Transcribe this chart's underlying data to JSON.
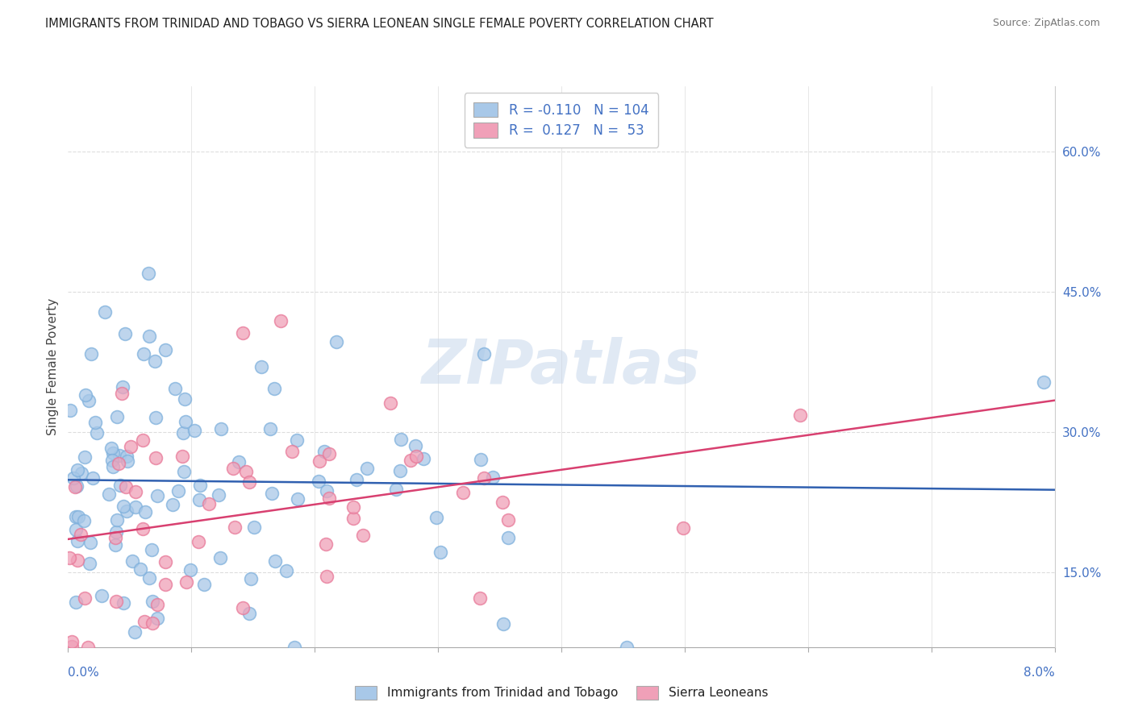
{
  "title": "IMMIGRANTS FROM TRINIDAD AND TOBAGO VS SIERRA LEONEAN SINGLE FEMALE POVERTY CORRELATION CHART",
  "source": "Source: ZipAtlas.com",
  "ylabel": "Single Female Poverty",
  "y_ticks": [
    0.15,
    0.3,
    0.45,
    0.6
  ],
  "y_tick_labels": [
    "15.0%",
    "30.0%",
    "45.0%",
    "60.0%"
  ],
  "x_range": [
    0.0,
    8.0
  ],
  "y_range": [
    0.07,
    0.67
  ],
  "blue_R": -0.11,
  "blue_N": 104,
  "pink_R": 0.127,
  "pink_N": 53,
  "blue_color": "#A8C8E8",
  "pink_color": "#F0A0B8",
  "blue_edge_color": "#7EB0DC",
  "pink_edge_color": "#E87898",
  "blue_line_color": "#3060B0",
  "pink_line_color": "#D84070",
  "legend_label_blue": "Immigrants from Trinidad and Tobago",
  "legend_label_pink": "Sierra Leoneans",
  "watermark": "ZIPatlas",
  "background_color": "#FFFFFF",
  "grid_color": "#DDDDDD",
  "title_color": "#222222",
  "axis_label_color": "#4472C4"
}
